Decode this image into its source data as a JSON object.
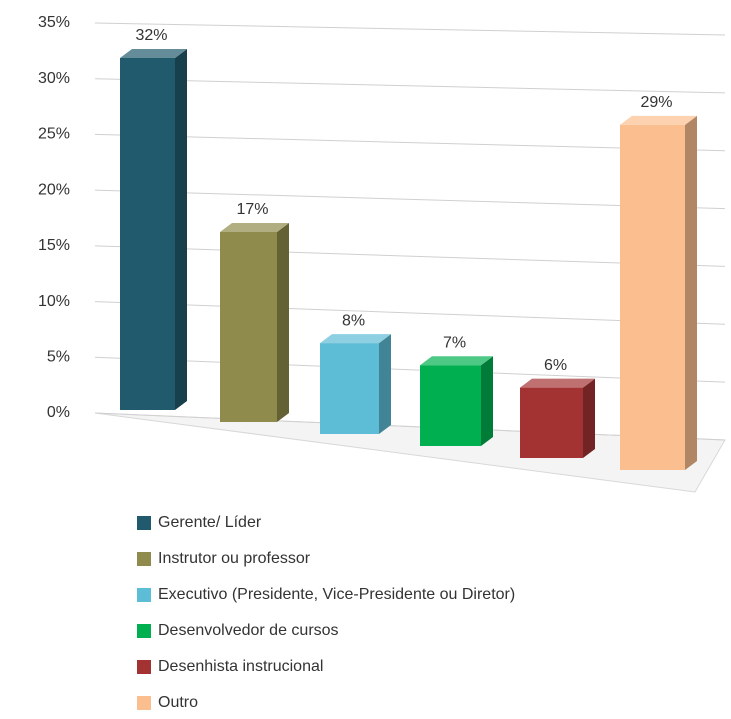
{
  "chart_data": {
    "type": "bar",
    "categories": [
      "Gerente/ Líder",
      "Instrutor ou professor",
      "Executivo (Presidente, Vice-Presidente ou Diretor)",
      "Desenvolvedor de cursos",
      "Desenhista instrucional",
      "Outro"
    ],
    "values": [
      32,
      17,
      8,
      7,
      6,
      29
    ],
    "value_labels": [
      "32%",
      "17%",
      "8%",
      "7%",
      "6%",
      "29%"
    ],
    "colors": [
      "#215a6d",
      "#8f8b4c",
      "#5dbcd6",
      "#00b050",
      "#a33232",
      "#fbbf8f"
    ],
    "ylim": [
      0,
      35
    ],
    "yticks": [
      {
        "value": 0,
        "label": "0%"
      },
      {
        "value": 5,
        "label": "5%"
      },
      {
        "value": 10,
        "label": "10%"
      },
      {
        "value": 15,
        "label": "15%"
      },
      {
        "value": 20,
        "label": "20%"
      },
      {
        "value": 25,
        "label": "25%"
      },
      {
        "value": 30,
        "label": "30%"
      },
      {
        "value": 35,
        "label": "35%"
      }
    ],
    "grid": true,
    "legend": "bottom"
  }
}
